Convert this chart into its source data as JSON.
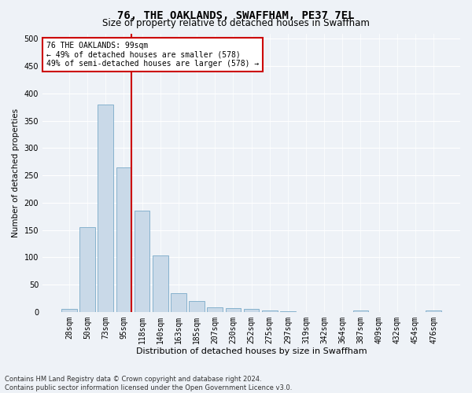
{
  "title": "76, THE OAKLANDS, SWAFFHAM, PE37 7EL",
  "subtitle": "Size of property relative to detached houses in Swaffham",
  "xlabel": "Distribution of detached houses by size in Swaffham",
  "ylabel": "Number of detached properties",
  "bar_labels": [
    "28sqm",
    "50sqm",
    "73sqm",
    "95sqm",
    "118sqm",
    "140sqm",
    "163sqm",
    "185sqm",
    "207sqm",
    "230sqm",
    "252sqm",
    "275sqm",
    "297sqm",
    "319sqm",
    "342sqm",
    "364sqm",
    "387sqm",
    "409sqm",
    "432sqm",
    "454sqm",
    "476sqm"
  ],
  "bar_values": [
    5,
    155,
    380,
    265,
    185,
    103,
    35,
    20,
    9,
    7,
    5,
    3,
    1,
    0,
    0,
    0,
    3,
    0,
    0,
    0,
    3
  ],
  "bar_color": "#c9d9e8",
  "bar_edge_color": "#7aaac8",
  "vline_index": 3,
  "vline_color": "#cc0000",
  "annotation_line1": "76 THE OAKLANDS: 99sqm",
  "annotation_line2": "← 49% of detached houses are smaller (578)",
  "annotation_line3": "49% of semi-detached houses are larger (578) →",
  "ylim": [
    0,
    510
  ],
  "yticks": [
    0,
    50,
    100,
    150,
    200,
    250,
    300,
    350,
    400,
    450,
    500
  ],
  "footer_line1": "Contains HM Land Registry data © Crown copyright and database right 2024.",
  "footer_line2": "Contains public sector information licensed under the Open Government Licence v3.0.",
  "bg_color": "#eef2f7",
  "grid_color": "#ffffff",
  "title_fontsize": 10,
  "subtitle_fontsize": 8.5,
  "xlabel_fontsize": 8,
  "ylabel_fontsize": 7.5,
  "tick_fontsize": 7,
  "annot_fontsize": 7,
  "footer_fontsize": 6
}
